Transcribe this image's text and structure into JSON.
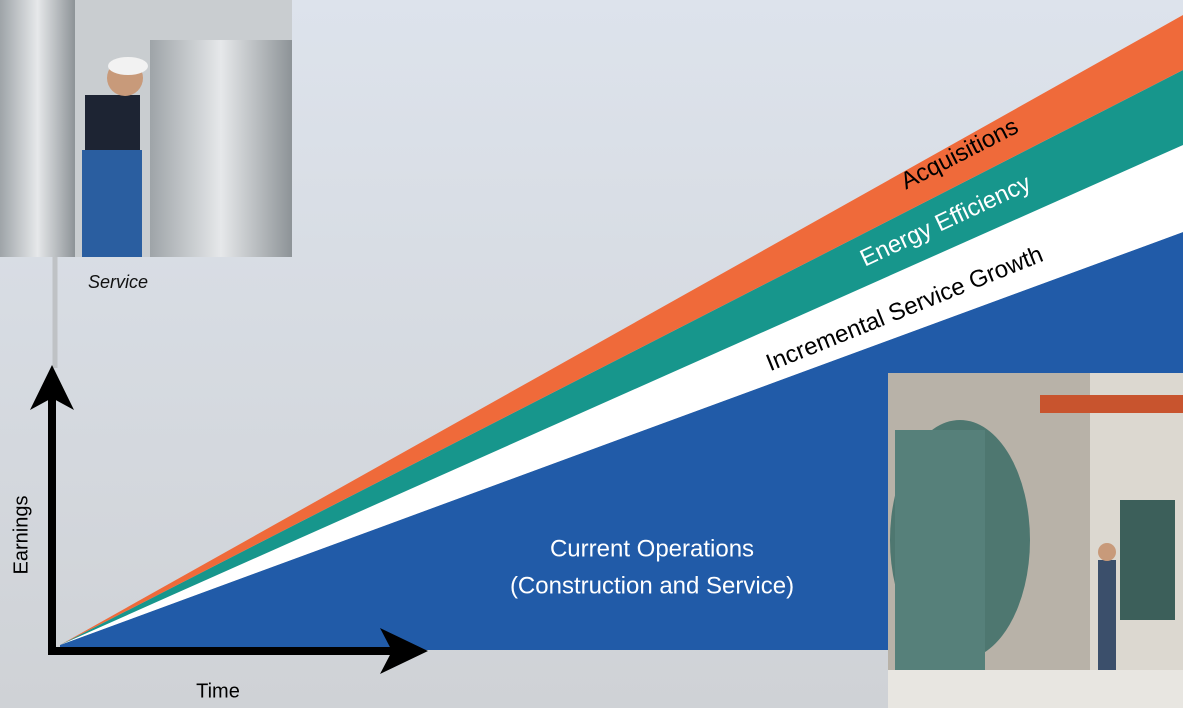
{
  "photo_caption": "Service",
  "axes": {
    "y_label": "Earnings",
    "x_label": "Time"
  },
  "bands": [
    {
      "label": "Acquisitions"
    },
    {
      "label": "Energy Efficiency"
    },
    {
      "label": "Incremental Service Growth"
    }
  ],
  "base": {
    "lines": [
      "Current Operations",
      "(Construction and Service)"
    ]
  }
}
